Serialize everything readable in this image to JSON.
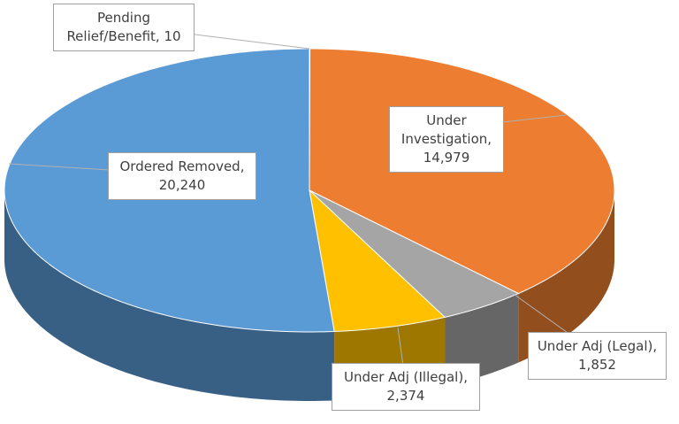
{
  "chart_data": {
    "type": "pie3d",
    "categories": [
      "Pending Relief/Benefit",
      "Under Investigation",
      "Under Adj (Legal)",
      "Under Adj (Illegal)",
      "Ordered Removed"
    ],
    "values": [
      10,
      14979,
      1852,
      2374,
      20240
    ],
    "value_labels": [
      "10",
      "14,979",
      "1,852",
      "2,374",
      "20,240"
    ],
    "colors": [
      "#4472c4",
      "#ed7d31",
      "#a5a5a5",
      "#ffc000",
      "#5b9bd5"
    ]
  }
}
